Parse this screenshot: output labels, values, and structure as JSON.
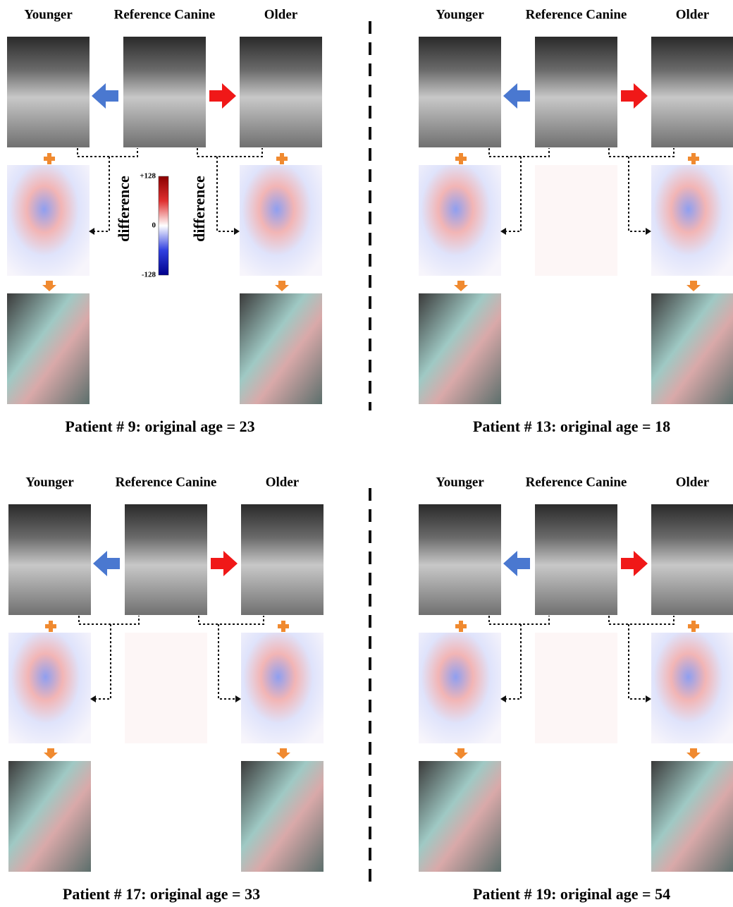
{
  "panels": [
    {
      "labels": [
        "Younger",
        "Reference Canine",
        "Older"
      ],
      "caption": "Patient # 9: original age = 23"
    },
    {
      "labels": [
        "Younger",
        "Reference Canine",
        "Older"
      ],
      "caption": "Patient # 13: original age = 18"
    },
    {
      "labels": [
        "Younger",
        "Reference Canine",
        "Older"
      ],
      "caption": "Patient # 17: original age = 33"
    },
    {
      "labels": [
        "Younger",
        "Reference Canine",
        "Older"
      ],
      "caption": "Patient # 19: original age = 54"
    }
  ],
  "colorbar": {
    "ticks": [
      "+128",
      "0",
      "-128"
    ],
    "labels": [
      "difference",
      "difference"
    ]
  }
}
